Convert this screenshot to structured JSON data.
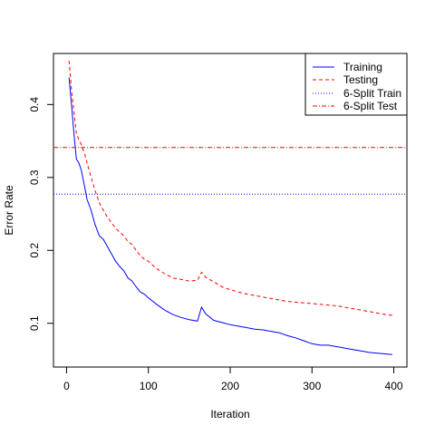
{
  "chart_data": {
    "type": "line",
    "title": "",
    "xlabel": "Iteration",
    "ylabel": "Error Rate",
    "xlim": [
      -16,
      416
    ],
    "ylim": [
      0.04,
      0.47
    ],
    "xticks": [
      0,
      100,
      200,
      300,
      400
    ],
    "yticks": [
      0.1,
      0.2,
      0.3,
      0.4
    ],
    "xtick_labels": [
      "0",
      "100",
      "200",
      "300",
      "400"
    ],
    "ytick_labels": [
      "0.1",
      "0.2",
      "0.3",
      "0.4"
    ],
    "grid": false,
    "legend_position": "top-right",
    "series": [
      {
        "name": "Training",
        "style": "solid",
        "color": "#0000ff",
        "x": [
          3,
          6,
          9,
          12,
          15,
          18,
          22,
          25,
          30,
          35,
          40,
          45,
          50,
          55,
          60,
          65,
          70,
          75,
          80,
          85,
          90,
          95,
          100,
          110,
          120,
          130,
          140,
          150,
          160,
          165,
          170,
          180,
          190,
          200,
          210,
          220,
          230,
          240,
          250,
          260,
          270,
          280,
          290,
          300,
          310,
          320,
          330,
          340,
          350,
          360,
          370,
          380,
          390,
          398
        ],
        "y": [
          0.437,
          0.4,
          0.36,
          0.325,
          0.32,
          0.31,
          0.288,
          0.27,
          0.255,
          0.235,
          0.22,
          0.215,
          0.205,
          0.195,
          0.185,
          0.178,
          0.172,
          0.162,
          0.158,
          0.15,
          0.143,
          0.14,
          0.135,
          0.126,
          0.118,
          0.112,
          0.108,
          0.105,
          0.103,
          0.122,
          0.113,
          0.104,
          0.101,
          0.098,
          0.096,
          0.094,
          0.092,
          0.091,
          0.089,
          0.087,
          0.083,
          0.08,
          0.076,
          0.072,
          0.07,
          0.07,
          0.068,
          0.066,
          0.064,
          0.062,
          0.06,
          0.059,
          0.058,
          0.057
        ]
      },
      {
        "name": "Testing",
        "style": "dashed",
        "color": "#ff0000",
        "x": [
          3,
          6,
          9,
          12,
          15,
          18,
          22,
          25,
          30,
          35,
          40,
          45,
          50,
          55,
          60,
          65,
          70,
          75,
          80,
          85,
          90,
          95,
          100,
          110,
          120,
          130,
          140,
          150,
          160,
          165,
          170,
          180,
          190,
          200,
          210,
          220,
          230,
          240,
          250,
          260,
          270,
          280,
          290,
          300,
          310,
          320,
          330,
          340,
          350,
          360,
          370,
          380,
          390,
          398
        ],
        "y": [
          0.46,
          0.42,
          0.39,
          0.36,
          0.352,
          0.345,
          0.333,
          0.32,
          0.3,
          0.282,
          0.265,
          0.255,
          0.245,
          0.238,
          0.23,
          0.225,
          0.22,
          0.212,
          0.208,
          0.2,
          0.193,
          0.188,
          0.185,
          0.175,
          0.168,
          0.162,
          0.16,
          0.158,
          0.159,
          0.17,
          0.163,
          0.157,
          0.15,
          0.146,
          0.143,
          0.14,
          0.138,
          0.136,
          0.134,
          0.132,
          0.13,
          0.129,
          0.128,
          0.127,
          0.126,
          0.125,
          0.124,
          0.122,
          0.12,
          0.118,
          0.116,
          0.114,
          0.112,
          0.111
        ]
      },
      {
        "name": "6-Split Train",
        "style": "dotted",
        "color": "#0000ff",
        "value": 0.277
      },
      {
        "name": "6-Split Test",
        "style": "dotdash",
        "color": "#ff0000",
        "value": 0.341
      }
    ]
  }
}
